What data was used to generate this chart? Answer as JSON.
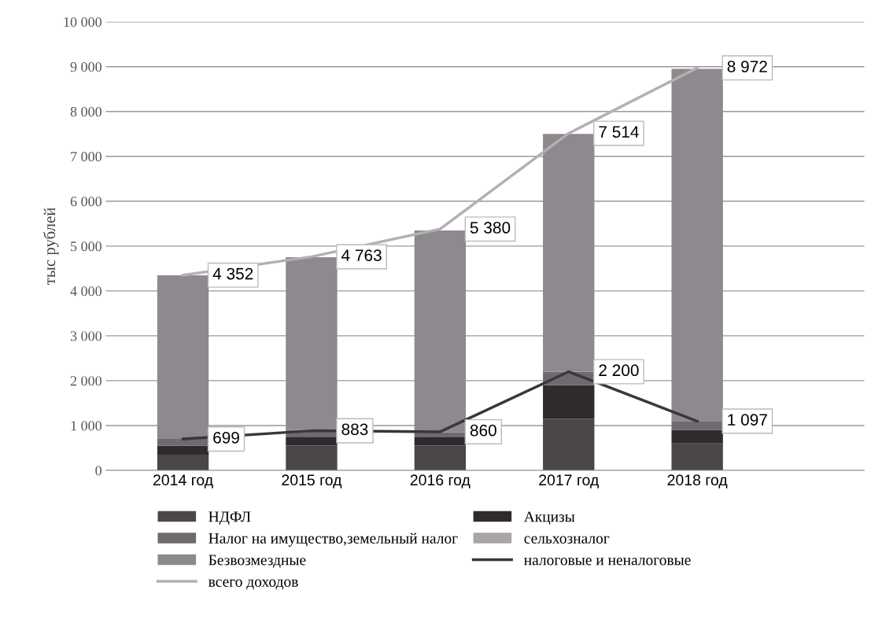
{
  "chart_data": {
    "type": "bar",
    "stacked": true,
    "ylabel": "тыс рублей",
    "categories": [
      "2014 год",
      "2015 год",
      "2016 год",
      "2017 год",
      "2018 год"
    ],
    "series": [
      {
        "name": "НДФЛ",
        "color": "#4a464a",
        "values": [
          350,
          550,
          550,
          1150,
          600
        ]
      },
      {
        "name": "Акцизы",
        "color": "#2e2a2e",
        "values": [
          200,
          200,
          200,
          750,
          300
        ]
      },
      {
        "name": "Налог на имущество,земельный налог",
        "color": "#6e6a6e",
        "values": [
          150,
          150,
          100,
          300,
          200
        ]
      },
      {
        "name": "сельхозналог",
        "color": "#a8a4a8",
        "values": [
          0,
          0,
          0,
          0,
          0
        ]
      },
      {
        "name": "Безвозмездные",
        "color": "#8d898e",
        "values": [
          3650,
          3850,
          4500,
          5300,
          7850
        ]
      },
      {
        "name": "налоговые и неналоговые",
        "type": "line",
        "color": "#3a373a",
        "values": [
          699,
          883,
          860,
          2200,
          1097
        ],
        "value_labels": [
          "699",
          "883",
          "860",
          "2 200",
          "1 097"
        ]
      },
      {
        "name": "всего доходов",
        "type": "line",
        "color": "#b3b0b3",
        "values": [
          4352,
          4763,
          5380,
          7514,
          8972
        ],
        "value_labels": [
          "4 352",
          "4 763",
          "5 380",
          "7 514",
          "8 972"
        ]
      }
    ],
    "ylim": [
      0,
      10000
    ],
    "yticks": [
      0,
      {
        "value": 1000,
        "label": "1 000"
      },
      {
        "value": 2000,
        "label": "2 000"
      },
      {
        "value": 3000,
        "label": "3 000"
      },
      {
        "value": 4000,
        "label": "4 000"
      },
      {
        "value": 5000,
        "label": "5 000"
      },
      {
        "value": 6000,
        "label": "6 000"
      },
      {
        "value": 7000,
        "label": "7 000"
      },
      {
        "value": 8000,
        "label": "8 000"
      },
      {
        "value": 9000,
        "label": "9 000"
      },
      {
        "value": 10000,
        "label": "10 000"
      }
    ],
    "grid": "y",
    "legend": "bottom",
    "marker": "none",
    "line_style": "solid"
  }
}
